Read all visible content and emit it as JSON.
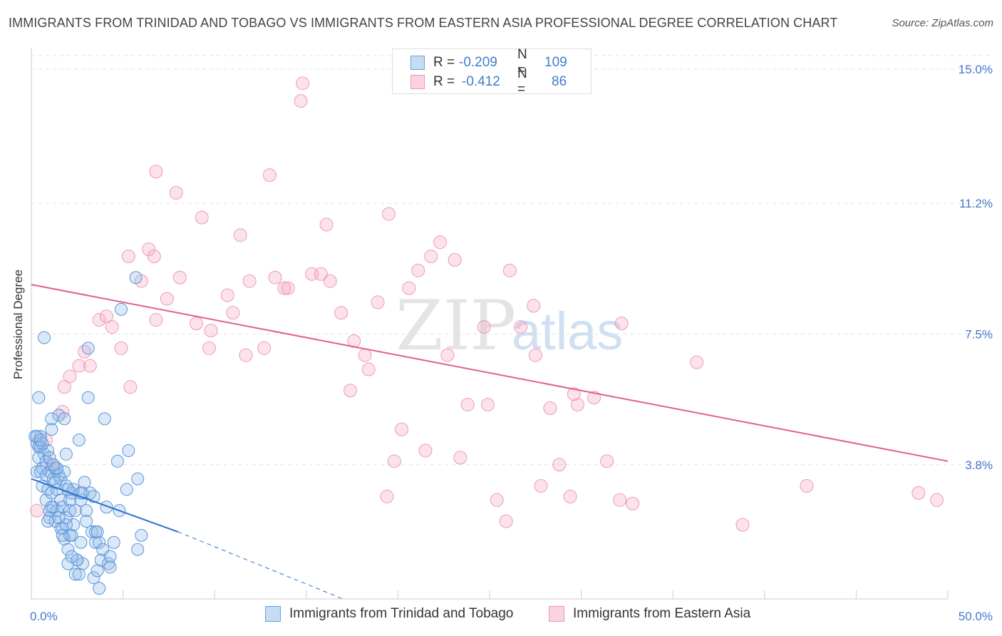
{
  "title": "IMMIGRANTS FROM TRINIDAD AND TOBAGO VS IMMIGRANTS FROM EASTERN ASIA PROFESSIONAL DEGREE CORRELATION CHART",
  "source": "Source: ZipAtlas.com",
  "watermark": {
    "zip": "ZIP",
    "atlas": "atlas"
  },
  "colors": {
    "blue": "#5b9bd5",
    "blue_line": "#2f6fd0",
    "pink": "#f4a0b8",
    "pink_line": "#e0608a",
    "tick": "#4477cc"
  },
  "legend_top": [
    {
      "r_label": "R =",
      "r_value": "-0.209",
      "n_label": "N =",
      "n_value": "109"
    },
    {
      "r_label": "R =",
      "r_value": "-0.412",
      "n_label": "N =",
      "n_value": "86"
    }
  ],
  "chart_data": {
    "type": "scatter",
    "title": "IMMIGRANTS FROM TRINIDAD AND TOBAGO VS IMMIGRANTS FROM EASTERN ASIA PROFESSIONAL DEGREE CORRELATION CHART",
    "xlabel": "",
    "ylabel": "Professional Degree",
    "xlim": [
      0,
      50
    ],
    "ylim": [
      0,
      15.5
    ],
    "y_ticks": [
      3.8,
      7.5,
      11.2,
      15.0
    ],
    "y_tick_labels": [
      "3.8%",
      "7.5%",
      "11.2%",
      "15.0%"
    ],
    "x_tick_labels": [
      "0.0%",
      "50.0%"
    ],
    "grid": true,
    "legend_position": "bottom",
    "series": [
      {
        "name": "Immigrants from Trinidad and Tobago",
        "color": "#5b9bd5",
        "points": [
          [
            0.2,
            4.6
          ],
          [
            0.3,
            4.4
          ],
          [
            0.3,
            3.6
          ],
          [
            0.4,
            4.3
          ],
          [
            0.4,
            5.7
          ],
          [
            0.5,
            4.6
          ],
          [
            0.5,
            4.3
          ],
          [
            0.6,
            3.7
          ],
          [
            0.6,
            3.2
          ],
          [
            0.7,
            4.1
          ],
          [
            0.8,
            3.5
          ],
          [
            0.8,
            2.8
          ],
          [
            0.9,
            3.1
          ],
          [
            0.9,
            4.2
          ],
          [
            1.0,
            3.6
          ],
          [
            1.0,
            2.5
          ],
          [
            1.0,
            2.3
          ],
          [
            1.1,
            3.0
          ],
          [
            1.1,
            4.8
          ],
          [
            1.1,
            5.1
          ],
          [
            1.2,
            3.4
          ],
          [
            1.2,
            2.6
          ],
          [
            1.3,
            3.7
          ],
          [
            1.3,
            2.2
          ],
          [
            1.4,
            3.1
          ],
          [
            1.4,
            2.5
          ],
          [
            1.5,
            3.5
          ],
          [
            1.5,
            5.2
          ],
          [
            1.6,
            3.4
          ],
          [
            1.6,
            2.8
          ],
          [
            1.7,
            2.6
          ],
          [
            1.7,
            2.0
          ],
          [
            1.8,
            3.6
          ],
          [
            1.8,
            1.7
          ],
          [
            1.8,
            5.1
          ],
          [
            1.9,
            4.1
          ],
          [
            1.9,
            3.2
          ],
          [
            1.9,
            2.3
          ],
          [
            2.0,
            1.4
          ],
          [
            2.0,
            1.0
          ],
          [
            2.1,
            2.8
          ],
          [
            2.1,
            2.5
          ],
          [
            2.1,
            1.8
          ],
          [
            2.2,
            3.0
          ],
          [
            2.2,
            1.8
          ],
          [
            2.3,
            2.1
          ],
          [
            2.3,
            3.1
          ],
          [
            2.4,
            0.7
          ],
          [
            2.5,
            1.1
          ],
          [
            2.6,
            0.7
          ],
          [
            2.6,
            4.5
          ],
          [
            2.7,
            2.8
          ],
          [
            2.7,
            1.6
          ],
          [
            2.8,
            3.0
          ],
          [
            2.8,
            1.0
          ],
          [
            2.9,
            3.3
          ],
          [
            3.0,
            2.5
          ],
          [
            3.0,
            2.2
          ],
          [
            3.1,
            7.1
          ],
          [
            3.1,
            5.7
          ],
          [
            3.2,
            3.0
          ],
          [
            3.3,
            1.9
          ],
          [
            3.4,
            0.6
          ],
          [
            3.4,
            2.9
          ],
          [
            3.5,
            1.6
          ],
          [
            3.5,
            1.9
          ],
          [
            3.6,
            0.8
          ],
          [
            3.7,
            1.6
          ],
          [
            3.7,
            0.3
          ],
          [
            3.8,
            1.1
          ],
          [
            3.9,
            1.4
          ],
          [
            4.0,
            5.1
          ],
          [
            4.1,
            2.6
          ],
          [
            4.2,
            1.0
          ],
          [
            4.3,
            1.2
          ],
          [
            4.3,
            0.9
          ],
          [
            4.5,
            1.6
          ],
          [
            4.7,
            3.9
          ],
          [
            4.8,
            2.5
          ],
          [
            4.9,
            8.2
          ],
          [
            5.2,
            3.1
          ],
          [
            5.3,
            4.2
          ],
          [
            5.7,
            9.1
          ],
          [
            5.8,
            3.4
          ],
          [
            5.8,
            1.4
          ],
          [
            6.0,
            1.8
          ],
          [
            0.7,
            7.4
          ],
          [
            0.3,
            4.6
          ],
          [
            0.5,
            3.6
          ],
          [
            0.9,
            2.2
          ],
          [
            1.1,
            2.6
          ],
          [
            1.3,
            3.3
          ],
          [
            1.6,
            2.0
          ],
          [
            2.0,
            3.1
          ],
          [
            2.5,
            1.1
          ],
          [
            0.4,
            4.0
          ],
          [
            0.6,
            4.4
          ],
          [
            1.4,
            3.7
          ],
          [
            1.9,
            2.1
          ],
          [
            2.4,
            2.5
          ],
          [
            0.8,
            3.9
          ],
          [
            1.5,
            2.3
          ],
          [
            3.6,
            1.9
          ],
          [
            2.2,
            1.2
          ],
          [
            1.0,
            4.0
          ],
          [
            2.7,
            3.0
          ],
          [
            1.7,
            1.8
          ],
          [
            0.5,
            4.5
          ],
          [
            1.2,
            3.8
          ]
        ],
        "trend": {
          "x": [
            0,
            8.0
          ],
          "y": [
            3.4,
            1.9
          ],
          "dashed_to": {
            "x": [
              8.0,
              17.0
            ],
            "y": [
              1.9,
              0.0
            ]
          }
        }
      },
      {
        "name": "Immigrants from Eastern Asia",
        "color": "#f4a0b8",
        "points": [
          [
            0.3,
            2.5
          ],
          [
            0.8,
            4.5
          ],
          [
            1.1,
            3.8
          ],
          [
            1.7,
            5.3
          ],
          [
            1.8,
            6.0
          ],
          [
            2.1,
            6.3
          ],
          [
            2.6,
            6.6
          ],
          [
            2.9,
            7.0
          ],
          [
            3.2,
            6.6
          ],
          [
            3.7,
            7.9
          ],
          [
            4.1,
            8.0
          ],
          [
            4.4,
            7.7
          ],
          [
            4.9,
            7.1
          ],
          [
            5.3,
            9.7
          ],
          [
            5.4,
            6.0
          ],
          [
            6.0,
            9.0
          ],
          [
            6.4,
            9.9
          ],
          [
            6.7,
            9.7
          ],
          [
            6.8,
            7.9
          ],
          [
            6.8,
            12.1
          ],
          [
            7.4,
            8.5
          ],
          [
            7.9,
            11.5
          ],
          [
            8.1,
            9.1
          ],
          [
            9.0,
            7.8
          ],
          [
            9.3,
            10.8
          ],
          [
            9.7,
            7.1
          ],
          [
            9.8,
            7.6
          ],
          [
            10.7,
            8.6
          ],
          [
            11.0,
            8.1
          ],
          [
            11.4,
            10.3
          ],
          [
            11.7,
            6.9
          ],
          [
            11.9,
            9.0
          ],
          [
            12.7,
            7.1
          ],
          [
            13.0,
            12.0
          ],
          [
            13.3,
            9.1
          ],
          [
            13.8,
            8.8
          ],
          [
            14.0,
            8.8
          ],
          [
            14.7,
            14.1
          ],
          [
            14.8,
            14.6
          ],
          [
            15.3,
            9.2
          ],
          [
            15.8,
            9.2
          ],
          [
            16.1,
            10.6
          ],
          [
            16.3,
            9.0
          ],
          [
            16.9,
            8.1
          ],
          [
            17.4,
            5.9
          ],
          [
            17.6,
            7.3
          ],
          [
            18.2,
            6.9
          ],
          [
            18.4,
            6.5
          ],
          [
            18.9,
            8.4
          ],
          [
            19.4,
            2.9
          ],
          [
            19.5,
            10.9
          ],
          [
            19.8,
            3.9
          ],
          [
            20.2,
            4.8
          ],
          [
            20.6,
            8.8
          ],
          [
            21.1,
            9.3
          ],
          [
            21.5,
            4.2
          ],
          [
            21.8,
            9.7
          ],
          [
            22.3,
            10.1
          ],
          [
            22.7,
            6.9
          ],
          [
            23.1,
            9.6
          ],
          [
            23.4,
            4.0
          ],
          [
            23.8,
            5.5
          ],
          [
            24.7,
            7.7
          ],
          [
            24.9,
            5.5
          ],
          [
            25.4,
            2.8
          ],
          [
            25.9,
            2.2
          ],
          [
            26.1,
            9.3
          ],
          [
            26.7,
            7.7
          ],
          [
            27.4,
            8.3
          ],
          [
            27.5,
            6.9
          ],
          [
            27.8,
            3.2
          ],
          [
            28.3,
            5.4
          ],
          [
            28.8,
            3.8
          ],
          [
            29.4,
            2.9
          ],
          [
            29.6,
            5.8
          ],
          [
            29.8,
            5.5
          ],
          [
            30.7,
            5.7
          ],
          [
            31.4,
            3.9
          ],
          [
            32.1,
            2.8
          ],
          [
            32.2,
            7.8
          ],
          [
            32.8,
            2.7
          ],
          [
            36.3,
            6.7
          ],
          [
            38.8,
            2.1
          ],
          [
            42.3,
            3.2
          ],
          [
            48.4,
            3.0
          ],
          [
            49.4,
            2.8
          ]
        ],
        "trend": {
          "x": [
            0,
            50
          ],
          "y": [
            8.9,
            3.9
          ]
        }
      }
    ]
  }
}
